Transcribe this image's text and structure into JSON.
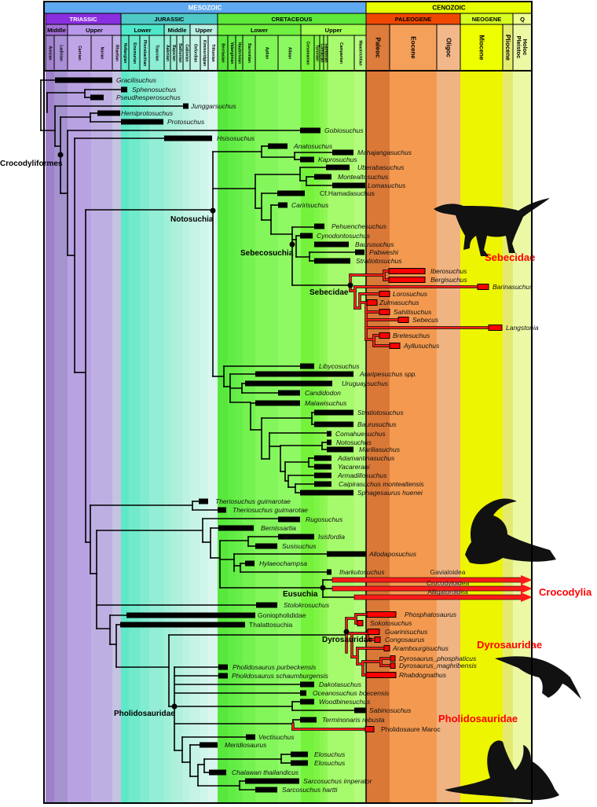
{
  "header": {
    "eras": [
      "MESOZOIC",
      "CENOZOIC"
    ],
    "periods": [
      "TRIASSIC",
      "JURASSIC",
      "CRETACEOUS",
      "PALEOGENE",
      "NEOGENE",
      "Q"
    ],
    "epochs": [
      "Middle",
      "Upper",
      "Lower",
      "Middle",
      "Upper",
      "Lower",
      "Upper"
    ],
    "stages": [
      "Anisian",
      "Ladinian",
      "Carnian",
      "Norian",
      "Rhaetian",
      "Hettangian",
      "Sinemurian",
      "Pliensbachian",
      "Toarcian",
      "Aalenian",
      "Bajocian",
      "Bathonian",
      "Callovian",
      "Oxfordian",
      "Kimmeridgian",
      "Tithonian",
      "Berriasian",
      "Valanginian",
      "Hauterivian",
      "Barremian",
      "Aptian",
      "Albian",
      "Cenomanian",
      "Turonian",
      "Coniacian",
      "Santonian",
      "Campanian",
      "Maastrichtian"
    ],
    "cenozoic_epochs": [
      "Paleoc",
      "Eocene",
      "Oligoc",
      "Miocene",
      "Pliocene",
      "Holoc Pleistoc"
    ]
  },
  "chart_data": {
    "type": "phylogeny-timescale",
    "taxa": [
      {
        "name": "Gracilisuchus"
      },
      {
        "name": "Sphenosuchus"
      },
      {
        "name": "Pseudhesperosuchus"
      },
      {
        "name": "Junggarsuchus"
      },
      {
        "name": "Hemiprotosuchus"
      },
      {
        "name": "Protosuchus"
      },
      {
        "name": "Gobiosuchus"
      },
      {
        "name": "Hsisosuchus"
      },
      {
        "name": "Anatosuchus"
      },
      {
        "name": "Mahajangasuchus"
      },
      {
        "name": "Kaprosuchus"
      },
      {
        "name": "Uberabasuchus"
      },
      {
        "name": "Montealtosuchus"
      },
      {
        "name": "Lomasuchus"
      },
      {
        "name": "Cf.Hamadasuchus"
      },
      {
        "name": "Caririsuchus"
      },
      {
        "name": "Pehuenchesuchus"
      },
      {
        "name": "Cynodontosuchus"
      },
      {
        "name": "Baurusuchus"
      },
      {
        "name": "Pabweshi"
      },
      {
        "name": "Stratiotosuchus"
      },
      {
        "name": "Iberosuchus",
        "color": "#ff0000"
      },
      {
        "name": "Bergisuchus",
        "color": "#ff0000"
      },
      {
        "name": "Barinasuchus",
        "color": "#ff0000"
      },
      {
        "name": "Lorosuchus",
        "color": "#ff0000"
      },
      {
        "name": "Zulmasuchus",
        "color": "#ff0000"
      },
      {
        "name": "Sahitisuchus",
        "color": "#ff0000"
      },
      {
        "name": "Sebecus",
        "color": "#ff0000"
      },
      {
        "name": "Langstonia",
        "color": "#ff0000"
      },
      {
        "name": "Bretesuchus",
        "color": "#ff0000"
      },
      {
        "name": "Ayllusuchus",
        "color": "#ff0000"
      },
      {
        "name": "Libycosuchus"
      },
      {
        "name": "Araripesuchus spp."
      },
      {
        "name": "Uruguaysuchus"
      },
      {
        "name": "Candidodon"
      },
      {
        "name": "Malawisuchus"
      },
      {
        "name": "Stratiotosuchus"
      },
      {
        "name": "Baurusuchus"
      },
      {
        "name": "Comahuesuchus"
      },
      {
        "name": "Notosuchus"
      },
      {
        "name": "Mariliasuchus"
      },
      {
        "name": "Adamantinasuchus"
      },
      {
        "name": "Yacarerani"
      },
      {
        "name": "Armadillosuchus"
      },
      {
        "name": "Caipirasuchus montealtensis"
      },
      {
        "name": "Sphagesaurus huenei"
      },
      {
        "name": "Theriosuchus guimarotae"
      },
      {
        "name": "Theriosuchus guimarotae"
      },
      {
        "name": "Rugosuchus"
      },
      {
        "name": "Bernissartia"
      },
      {
        "name": "Isisfordia"
      },
      {
        "name": "Susisuchus"
      },
      {
        "name": "Allodaposuchus"
      },
      {
        "name": "Hylaeochampsa"
      },
      {
        "name": "Iharkutosuchus"
      },
      {
        "name": "Stolokrosuchus"
      },
      {
        "name": "Goniopholididae"
      },
      {
        "name": "Thalattosuchia"
      },
      {
        "name": "Phosphatosaurus",
        "color": "#ff0000"
      },
      {
        "name": "Sokotosuchus",
        "color": "#ff0000"
      },
      {
        "name": "Guarinisuchus",
        "color": "#ff0000"
      },
      {
        "name": "Congosaurus",
        "color": "#ff0000"
      },
      {
        "name": "Arambourgisuchus",
        "color": "#ff0000"
      },
      {
        "name": "Dyrosaurus_phosphaticus",
        "color": "#ff0000"
      },
      {
        "name": "Dyrosaurus_maghribensis",
        "color": "#ff0000"
      },
      {
        "name": "Rhabdognathus",
        "color": "#ff0000"
      },
      {
        "name": "Pholidosaurus purbeckensis"
      },
      {
        "name": "Pholidosaurus schaumburgensis"
      },
      {
        "name": "Dakotasuchus"
      },
      {
        "name": "Oceanosuchus boecensis"
      },
      {
        "name": "Woodbinesuchus"
      },
      {
        "name": "Sabinosuchus"
      },
      {
        "name": "Terminonaris robusta"
      },
      {
        "name": "Pholidosaure Maroc",
        "color": "#ff0000"
      },
      {
        "name": "Vectisuchus"
      },
      {
        "name": "Meridiosaurus"
      },
      {
        "name": "Elosuchus"
      },
      {
        "name": "Elosuchus"
      },
      {
        "name": "Chalawan thailandicus"
      },
      {
        "name": "Sarcosuchus imperator"
      },
      {
        "name": "Sarcosuchus hartti"
      }
    ],
    "clades": [
      "Crocodyliformes",
      "Notosuchia",
      "Sebecosuchia",
      "Sebecidae",
      "Eusuchia",
      "Dyrosauridae",
      "Pholidosauridae"
    ],
    "groups": [
      "Sebecidae",
      "Crocodylia",
      "Dyrosauridae",
      "Pholidosauridae"
    ],
    "extant_lineages": [
      "Gavialoidea",
      "Crocodyloidea",
      "Alligatoroidea"
    ],
    "colors": {
      "highlight": "#ff0000",
      "branch": "#000000"
    }
  }
}
